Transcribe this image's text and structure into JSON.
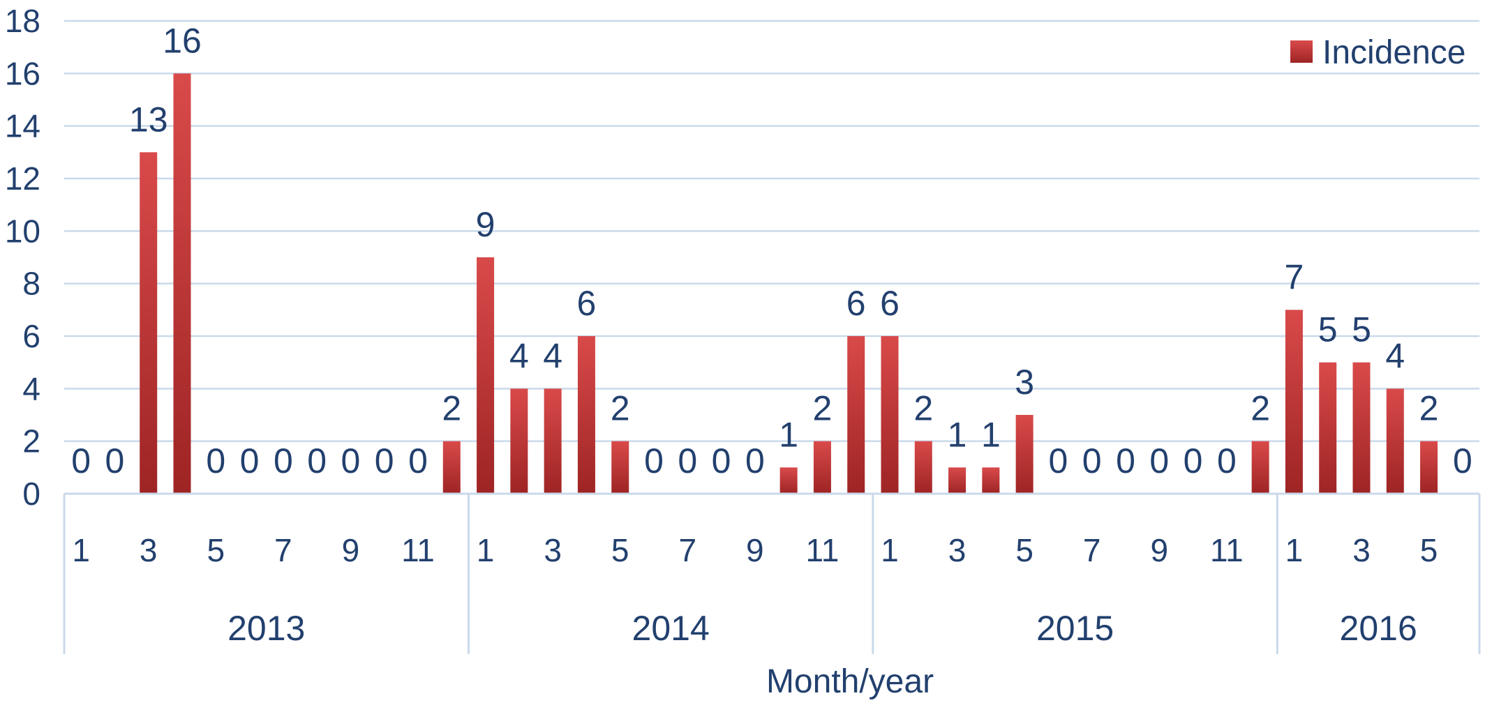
{
  "chart_data": {
    "type": "bar",
    "xlabel": "Month/year",
    "ylabel": "",
    "ylim": [
      0,
      18
    ],
    "yticks": [
      0,
      2,
      4,
      6,
      8,
      10,
      12,
      14,
      16,
      18
    ],
    "grid": true,
    "legend_position": "top-right",
    "bar_color": "#c0393b",
    "series": [
      {
        "name": "Incidence",
        "values": [
          0,
          0,
          13,
          16,
          0,
          0,
          0,
          0,
          0,
          0,
          0,
          2,
          9,
          4,
          4,
          6,
          2,
          0,
          0,
          0,
          0,
          1,
          2,
          6,
          6,
          2,
          1,
          1,
          3,
          0,
          0,
          0,
          0,
          0,
          0,
          2,
          7,
          5,
          5,
          4,
          2,
          0
        ]
      }
    ],
    "months": [
      1,
      2,
      3,
      4,
      5,
      6,
      7,
      8,
      9,
      10,
      11,
      12,
      1,
      2,
      3,
      4,
      5,
      6,
      7,
      8,
      9,
      10,
      11,
      12,
      1,
      2,
      3,
      4,
      5,
      6,
      7,
      8,
      9,
      10,
      11,
      12,
      1,
      2,
      3,
      4,
      5,
      6
    ],
    "month_tick_labels": [
      "1",
      "3",
      "5",
      "7",
      "9",
      "11"
    ],
    "years": [
      {
        "label": "2013",
        "months": 12
      },
      {
        "label": "2014",
        "months": 12
      },
      {
        "label": "2015",
        "months": 12
      },
      {
        "label": "2016",
        "months": 6
      }
    ]
  }
}
